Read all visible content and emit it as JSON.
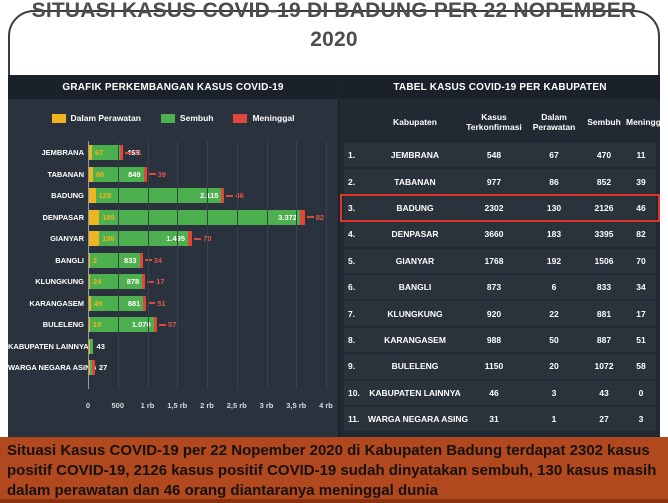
{
  "page": {
    "title": "SITUASI KASUS COVID-19 DI BADUNG PER 22 NOPEMBER 2020"
  },
  "chart_panel": {
    "title": "GRAFIK PERKEMBANGAN KASUS COVID-19",
    "legend": [
      {
        "label": "Dalam Perawatan",
        "color": "#f0b41e"
      },
      {
        "label": "Sembuh",
        "color": "#4cb04f"
      },
      {
        "label": "Meninggal",
        "color": "#e2453a"
      }
    ],
    "x_ticks": [
      "0",
      "500",
      "1 rb",
      "1,5 rb",
      "2 rb",
      "2,5 rb",
      "3 rb",
      "3,5 rb",
      "4 rb"
    ]
  },
  "chart_data": {
    "type": "bar",
    "orientation": "horizontal",
    "stacked": true,
    "title": "GRAFIK PERKEMBANGAN KASUS COVID-19",
    "xlabel": "",
    "ylabel": "",
    "xlim": [
      0,
      4000
    ],
    "grid": true,
    "legend_position": "top",
    "categories": [
      "JEMBRANA",
      "TABANAN",
      "BADUNG",
      "DENPASAR",
      "GIANYAR",
      "BANGLI",
      "KLUNGKUNG",
      "KARANGASEM",
      "BULELENG",
      "KABUPATEN LAINNYA",
      "WARGA NEGARA ASING"
    ],
    "series": [
      {
        "name": "Dalam Perawatan",
        "color": "#f0b41e",
        "values": [
          67,
          86,
          128,
          189,
          186,
          2,
          24,
          49,
          19,
          3,
          1
        ]
      },
      {
        "name": "Sembuh",
        "color": "#4cb04f",
        "values": [
          468,
          849,
          2115,
          3372,
          1495,
          833,
          878,
          881,
          1070,
          43,
          27
        ]
      },
      {
        "name": "Meninggal",
        "color": "#e2453a",
        "values": [
          11,
          39,
          46,
          82,
          70,
          34,
          17,
          51,
          57,
          0,
          3
        ]
      }
    ],
    "bar_labels": {
      "dalam_perawatan": [
        "67",
        "86",
        "128",
        "189",
        "186",
        "2",
        "24",
        "49",
        "19",
        "",
        ""
      ],
      "sembuh": [
        "468",
        "849",
        "2.115",
        "3.372",
        "1.495",
        "833",
        "878",
        "881",
        "1.070",
        "43",
        "27"
      ],
      "meninggal": [
        "11",
        "39",
        "46",
        "82",
        "70",
        "34",
        "17",
        "51",
        "57",
        "",
        ""
      ]
    }
  },
  "table_panel": {
    "title": "TABEL KASUS COVID-19 PER KABUPATEN",
    "columns": [
      "Kabupaten",
      "Kasus Terkonfirmasi",
      "Dalam Perawatan",
      "Sembuh",
      "Meninggal"
    ],
    "highlight_color": "#e0342b",
    "rows": [
      {
        "no": "1.",
        "kabupaten": "JEMBRANA",
        "kasus_terkonfirmasi": "548",
        "dalam_perawatan": "67",
        "sembuh": "470",
        "meninggal": "11",
        "highlighted": false
      },
      {
        "no": "2.",
        "kabupaten": "TABANAN",
        "kasus_terkonfirmasi": "977",
        "dalam_perawatan": "86",
        "sembuh": "852",
        "meninggal": "39",
        "highlighted": false
      },
      {
        "no": "3.",
        "kabupaten": "BADUNG",
        "kasus_terkonfirmasi": "2302",
        "dalam_perawatan": "130",
        "sembuh": "2126",
        "meninggal": "46",
        "highlighted": true
      },
      {
        "no": "4.",
        "kabupaten": "DENPASAR",
        "kasus_terkonfirmasi": "3660",
        "dalam_perawatan": "183",
        "sembuh": "3395",
        "meninggal": "82",
        "highlighted": false
      },
      {
        "no": "5.",
        "kabupaten": "GIANYAR",
        "kasus_terkonfirmasi": "1768",
        "dalam_perawatan": "192",
        "sembuh": "1506",
        "meninggal": "70",
        "highlighted": false
      },
      {
        "no": "6.",
        "kabupaten": "BANGLI",
        "kasus_terkonfirmasi": "873",
        "dalam_perawatan": "6",
        "sembuh": "833",
        "meninggal": "34",
        "highlighted": false
      },
      {
        "no": "7.",
        "kabupaten": "KLUNGKUNG",
        "kasus_terkonfirmasi": "920",
        "dalam_perawatan": "22",
        "sembuh": "881",
        "meninggal": "17",
        "highlighted": false
      },
      {
        "no": "8.",
        "kabupaten": "KARANGASEM",
        "kasus_terkonfirmasi": "988",
        "dalam_perawatan": "50",
        "sembuh": "887",
        "meninggal": "51",
        "highlighted": false
      },
      {
        "no": "9.",
        "kabupaten": "BULELENG",
        "kasus_terkonfirmasi": "1150",
        "dalam_perawatan": "20",
        "sembuh": "1072",
        "meninggal": "58",
        "highlighted": false
      },
      {
        "no": "10.",
        "kabupaten": "KABUPATEN LAINNYA",
        "kasus_terkonfirmasi": "46",
        "dalam_perawatan": "3",
        "sembuh": "43",
        "meninggal": "0",
        "highlighted": false
      },
      {
        "no": "11.",
        "kabupaten": "WARGA NEGARA ASING",
        "kasus_terkonfirmasi": "31",
        "dalam_perawatan": "1",
        "sembuh": "27",
        "meninggal": "3",
        "highlighted": false
      }
    ]
  },
  "footer": {
    "text": "Situasi Kasus COVID-19 per 22 Nopember 2020 di Kabupaten Badung terdapat 2302 kasus positif COVID-19, 2126 kasus positif COVID-19 sudah dinyatakan sembuh, 130 kasus masih dalam perawatan dan 46 orang diantaranya meninggal dunia",
    "background": "#b1481e"
  }
}
